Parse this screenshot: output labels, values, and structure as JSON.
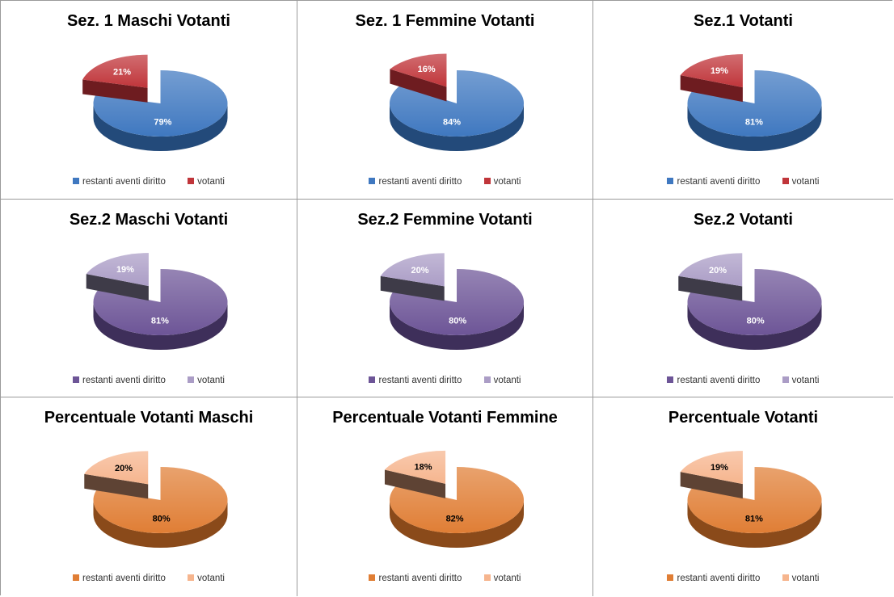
{
  "chart_data": [
    {
      "type": "pie",
      "title": "Sez. 1 Maschi Votanti",
      "categories": [
        "restanti aventi diritto",
        "votanti"
      ],
      "values": [
        79,
        21
      ],
      "labels": [
        "79%",
        "21%"
      ],
      "colors": [
        "#3f78c0",
        "#c0353a"
      ],
      "dark_colors": [
        "#234a7a",
        "#6e1c20"
      ],
      "label_colors": [
        "#ffffff",
        "#ffffff"
      ],
      "legend": "bottom"
    },
    {
      "type": "pie",
      "title": "Sez. 1  Femmine Votanti",
      "categories": [
        "restanti aventi diritto",
        "votanti"
      ],
      "values": [
        84,
        16
      ],
      "labels": [
        "84%",
        "16%"
      ],
      "colors": [
        "#3f78c0",
        "#c0353a"
      ],
      "dark_colors": [
        "#234a7a",
        "#6e1c20"
      ],
      "label_colors": [
        "#ffffff",
        "#ffffff"
      ],
      "legend": "bottom"
    },
    {
      "type": "pie",
      "title": "Sez.1  Votanti",
      "categories": [
        "restanti aventi diritto",
        "votanti"
      ],
      "values": [
        81,
        19
      ],
      "labels": [
        "81%",
        "19%"
      ],
      "colors": [
        "#3f78c0",
        "#c0353a"
      ],
      "dark_colors": [
        "#234a7a",
        "#6e1c20"
      ],
      "label_colors": [
        "#ffffff",
        "#ffffff"
      ],
      "legend": "bottom"
    },
    {
      "type": "pie",
      "title": "Sez.2  Maschi Votanti",
      "categories": [
        "restanti aventi diritto",
        "votanti"
      ],
      "values": [
        81,
        19
      ],
      "labels": [
        "81%",
        "19%"
      ],
      "colors": [
        "#6d5597",
        "#ab9dc6"
      ],
      "dark_colors": [
        "#3e2f5a",
        "#3e3b48"
      ],
      "label_colors": [
        "#ffffff",
        "#ffffff"
      ],
      "legend": "bottom"
    },
    {
      "type": "pie",
      "title": "Sez.2 Femmine Votanti",
      "categories": [
        "restanti aventi diritto",
        "votanti"
      ],
      "values": [
        80,
        20
      ],
      "labels": [
        "80%",
        "20%"
      ],
      "colors": [
        "#6d5597",
        "#ab9dc6"
      ],
      "dark_colors": [
        "#3e2f5a",
        "#3e3b48"
      ],
      "label_colors": [
        "#ffffff",
        "#ffffff"
      ],
      "legend": "bottom"
    },
    {
      "type": "pie",
      "title": "Sez.2  Votanti",
      "categories": [
        "restanti aventi diritto",
        "votanti"
      ],
      "values": [
        80,
        20
      ],
      "labels": [
        "80%",
        "20%"
      ],
      "colors": [
        "#6d5597",
        "#ab9dc6"
      ],
      "dark_colors": [
        "#3e2f5a",
        "#3e3b48"
      ],
      "label_colors": [
        "#ffffff",
        "#ffffff"
      ],
      "legend": "bottom"
    },
    {
      "type": "pie",
      "title": "Percentuale  Votanti Maschi",
      "categories": [
        "restanti aventi diritto",
        "votanti"
      ],
      "values": [
        80,
        20
      ],
      "labels": [
        "80%",
        "20%"
      ],
      "colors": [
        "#e07e35",
        "#f6b58e"
      ],
      "dark_colors": [
        "#8a4a1a",
        "#5e4334"
      ],
      "label_colors": [
        "#000000",
        "#000000"
      ],
      "legend": "bottom"
    },
    {
      "type": "pie",
      "title": "Percentuale Votanti Femmine",
      "categories": [
        "restanti aventi diritto",
        "votanti"
      ],
      "values": [
        82,
        18
      ],
      "labels": [
        "82%",
        "18%"
      ],
      "colors": [
        "#e07e35",
        "#f6b58e"
      ],
      "dark_colors": [
        "#8a4a1a",
        "#5e4334"
      ],
      "label_colors": [
        "#000000",
        "#000000"
      ],
      "legend": "bottom"
    },
    {
      "type": "pie",
      "title": "Percentuale Votanti",
      "categories": [
        "restanti aventi diritto",
        "votanti"
      ],
      "values": [
        81,
        19
      ],
      "labels": [
        "81%",
        "19%"
      ],
      "colors": [
        "#e07e35",
        "#f6b58e"
      ],
      "dark_colors": [
        "#8a4a1a",
        "#5e4334"
      ],
      "label_colors": [
        "#000000",
        "#000000"
      ],
      "legend": "bottom"
    }
  ]
}
